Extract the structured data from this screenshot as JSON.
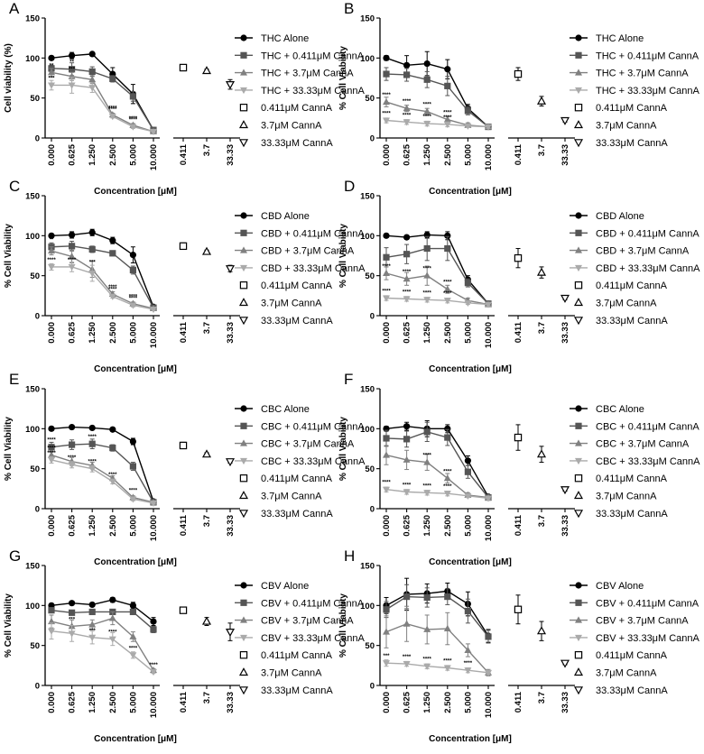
{
  "figure": {
    "xlabel": "Concentration [μM]",
    "x_ticks_combo": [
      "0.000",
      "0.625",
      "1.250",
      "2.500",
      "5.000",
      "10.000"
    ],
    "x_ticks_single": [
      "0.411",
      "3.7",
      "33.33"
    ],
    "y_ticks": [
      "0",
      "50",
      "100",
      "150"
    ],
    "ylim": [
      0,
      150
    ],
    "colors": {
      "alone": "#000000",
      "c0411": "#555555",
      "c37": "#808080",
      "c3333": "#aaaaaa"
    }
  },
  "chart_data": [
    {
      "panel": "A",
      "type": "line",
      "ylabel": "Cell viability (%)",
      "legend": [
        "THC Alone",
        "THC + 0.411μM CannA",
        "THC + 3.7μM CannA",
        "THC + 33.33μM CannA",
        "0.411μM CannA",
        "3.7μM CannA",
        "33.33μM CannA"
      ],
      "series": [
        {
          "values": [
            100,
            103,
            105,
            80,
            55,
            10
          ],
          "err": [
            2,
            4,
            2,
            8,
            12,
            2
          ],
          "sig": [
            "",
            "",
            "",
            "",
            "",
            ""
          ]
        },
        {
          "values": [
            87,
            86,
            83,
            74,
            52,
            10
          ],
          "err": [
            4,
            8,
            6,
            4,
            6,
            2
          ],
          "sig": [
            "*",
            "**",
            "",
            "",
            "",
            ""
          ]
        },
        {
          "values": [
            82,
            77,
            73,
            29,
            16,
            8
          ],
          "err": [
            5,
            5,
            5,
            2,
            2,
            1
          ],
          "sig": [
            "**",
            "***",
            "",
            "****",
            "****",
            ""
          ]
        },
        {
          "values": [
            66,
            66,
            63,
            27,
            14,
            8
          ],
          "err": [
            6,
            10,
            6,
            2,
            2,
            1
          ],
          "sig": [
            "***",
            "",
            "",
            "****",
            "****",
            ""
          ]
        }
      ],
      "singles": [
        {
          "value": 88,
          "err": 2
        },
        {
          "value": 84,
          "err": 2
        },
        {
          "value": 67,
          "err": 6
        }
      ]
    },
    {
      "panel": "B",
      "type": "line",
      "ylabel": "% Cell Viability",
      "legend": [
        "THC Alone",
        "THC + 0.411μM CannA",
        "THC + 3.7μM CannA",
        "THC + 33.33μM CannA",
        "0.411μM CannA",
        "3.7μM CannA",
        "33.33μM CannA"
      ],
      "series": [
        {
          "values": [
            100,
            91,
            93,
            86,
            37,
            14
          ],
          "err": [
            3,
            12,
            15,
            12,
            5,
            2
          ],
          "sig": [
            "",
            "",
            "",
            "",
            "",
            ""
          ]
        },
        {
          "values": [
            80,
            79,
            73,
            65,
            34,
            14
          ],
          "err": [
            8,
            8,
            10,
            12,
            5,
            2
          ],
          "sig": [
            "",
            "",
            "",
            "",
            "",
            ""
          ]
        },
        {
          "values": [
            45,
            37,
            33,
            23,
            16,
            14
          ],
          "err": [
            6,
            4,
            4,
            4,
            3,
            2
          ],
          "sig": [
            "****",
            "****",
            "****",
            "****",
            "",
            ""
          ]
        },
        {
          "values": [
            22,
            20,
            18,
            17,
            15,
            14
          ],
          "err": [
            3,
            3,
            3,
            3,
            2,
            2
          ],
          "sig": [
            "****",
            "****",
            "****",
            "****",
            "",
            ""
          ]
        }
      ],
      "singles": [
        {
          "value": 80,
          "err": 8
        },
        {
          "value": 46,
          "err": 6
        },
        {
          "value": 22,
          "err": 2
        }
      ]
    },
    {
      "panel": "C",
      "type": "line",
      "ylabel": "% Cell Viability",
      "legend": [
        "CBD Alone",
        "CBD + 0.411μM CannA",
        "CBD + 3.7μM CannA",
        "CBD + 33.33μM CannA",
        "0.411μM CannA",
        "3.7μM CannA",
        "33.33μM CannA"
      ],
      "series": [
        {
          "values": [
            100,
            101,
            104,
            94,
            76,
            11
          ],
          "err": [
            2,
            4,
            4,
            4,
            10,
            2
          ],
          "sig": [
            "",
            "",
            "",
            "",
            "",
            ""
          ]
        },
        {
          "values": [
            86,
            87,
            83,
            78,
            57,
            10
          ],
          "err": [
            5,
            6,
            4,
            3,
            5,
            2
          ],
          "sig": [
            "**",
            "",
            "",
            "",
            "",
            ""
          ]
        },
        {
          "values": [
            81,
            74,
            58,
            27,
            15,
            9
          ],
          "err": [
            5,
            8,
            10,
            3,
            2,
            1
          ],
          "sig": [
            "",
            "",
            "***",
            "****",
            "****",
            ""
          ]
        },
        {
          "values": [
            61,
            61,
            53,
            24,
            13,
            8
          ],
          "err": [
            4,
            6,
            10,
            2,
            2,
            1
          ],
          "sig": [
            "****",
            "****",
            "",
            "****",
            "****",
            ""
          ]
        }
      ],
      "singles": [
        {
          "value": 87,
          "err": 4
        },
        {
          "value": 80,
          "err": 2
        },
        {
          "value": 59,
          "err": 4
        }
      ]
    },
    {
      "panel": "D",
      "type": "line",
      "ylabel": "% Cell Viability",
      "legend": [
        "CBD Alone",
        "CBD + 0.411μM CannA",
        "CBD + 3.7μM CannA",
        "CBD + 33.33μM CannA",
        "0.411μM CannA",
        "3.7μM CannA",
        "33.33μM CannA"
      ],
      "series": [
        {
          "values": [
            100,
            98,
            101,
            100,
            45,
            15
          ],
          "err": [
            2,
            2,
            4,
            5,
            5,
            2
          ],
          "sig": [
            "",
            "",
            "",
            "",
            "",
            ""
          ]
        },
        {
          "values": [
            73,
            77,
            84,
            84,
            41,
            15
          ],
          "err": [
            12,
            12,
            15,
            15,
            5,
            2
          ],
          "sig": [
            "",
            "",
            "",
            "",
            "",
            ""
          ]
        },
        {
          "values": [
            53,
            46,
            50,
            33,
            19,
            14
          ],
          "err": [
            8,
            8,
            12,
            5,
            3,
            2
          ],
          "sig": [
            "****",
            "****",
            "****",
            "****",
            "",
            ""
          ]
        },
        {
          "values": [
            22,
            21,
            20,
            19,
            16,
            14
          ],
          "err": [
            3,
            3,
            3,
            3,
            2,
            2
          ],
          "sig": [
            "****",
            "****",
            "****",
            "****",
            "",
            ""
          ]
        }
      ],
      "singles": [
        {
          "value": 72,
          "err": 12
        },
        {
          "value": 54,
          "err": 7
        },
        {
          "value": 22,
          "err": 2
        }
      ]
    },
    {
      "panel": "E",
      "type": "line",
      "ylabel": "% Cell Viability",
      "legend": [
        "CBC Alone",
        "CBC + 0.411μM CannA",
        "CBC + 3.7μM CannA",
        "CBC + 33.33μM CannA",
        "0.411μM CannA",
        "3.7μM CannA",
        "33.33μM CannA"
      ],
      "series": [
        {
          "values": [
            100,
            102,
            101,
            99,
            84,
            9
          ],
          "err": [
            2,
            2,
            2,
            2,
            4,
            2
          ],
          "sig": [
            "",
            "",
            "",
            "",
            "",
            ""
          ]
        },
        {
          "values": [
            77,
            80,
            81,
            76,
            53,
            8
          ],
          "err": [
            6,
            6,
            6,
            4,
            5,
            2
          ],
          "sig": [
            "****",
            "",
            "****",
            "",
            "",
            ""
          ]
        },
        {
          "values": [
            67,
            59,
            54,
            38,
            14,
            8
          ],
          "err": [
            5,
            5,
            4,
            3,
            2,
            1
          ],
          "sig": [
            "****",
            "",
            "",
            "",
            "****",
            ""
          ]
        },
        {
          "values": [
            61,
            55,
            50,
            34,
            12,
            7
          ],
          "err": [
            4,
            4,
            4,
            3,
            2,
            1
          ],
          "sig": [
            "****",
            "****",
            "****",
            "****",
            "",
            ""
          ]
        }
      ],
      "singles": [
        {
          "value": 79,
          "err": 4
        },
        {
          "value": 68,
          "err": 2
        },
        {
          "value": 59,
          "err": 2
        }
      ]
    },
    {
      "panel": "F",
      "type": "line",
      "ylabel": "% Cell Viability",
      "legend": [
        "CBC Alone",
        "CBC + 0.411μM CannA",
        "CBC + 3.7μM CannA",
        "CBC + 33.33μM CannA",
        "0.411μM CannA",
        "3.7μM CannA",
        "33.33μM CannA"
      ],
      "series": [
        {
          "values": [
            100,
            103,
            100,
            100,
            60,
            15
          ],
          "err": [
            3,
            5,
            10,
            5,
            6,
            2
          ],
          "sig": [
            "",
            "",
            "",
            "",
            "",
            ""
          ]
        },
        {
          "values": [
            88,
            87,
            96,
            89,
            46,
            14
          ],
          "err": [
            10,
            10,
            12,
            10,
            8,
            2
          ],
          "sig": [
            "",
            "",
            "",
            "",
            "",
            ""
          ]
        },
        {
          "values": [
            67,
            61,
            58,
            38,
            17,
            14
          ],
          "err": [
            12,
            12,
            10,
            6,
            3,
            2
          ],
          "sig": [
            "",
            "",
            "****",
            "****",
            "",
            ""
          ]
        },
        {
          "values": [
            24,
            21,
            20,
            19,
            16,
            13
          ],
          "err": [
            3,
            3,
            3,
            3,
            2,
            2
          ],
          "sig": [
            "****",
            "****",
            "****",
            "****",
            "",
            ""
          ]
        }
      ],
      "singles": [
        {
          "value": 89,
          "err": 16
        },
        {
          "value": 68,
          "err": 10
        },
        {
          "value": 24,
          "err": 2
        }
      ]
    },
    {
      "panel": "G",
      "type": "line",
      "ylabel": "% Cell Viability",
      "legend": [
        "CBV Alone",
        "CBV + 0.411μM CannA",
        "CBV + 3.7μM CannA",
        "CBV + 33.33μM CannA",
        "0.411μM CannA",
        "3.7μM CannA",
        "33.33μM CannA"
      ],
      "series": [
        {
          "values": [
            100,
            103,
            101,
            107,
            100,
            80
          ],
          "err": [
            2,
            2,
            2,
            3,
            4,
            5
          ],
          "sig": [
            "",
            "",
            "",
            "",
            "",
            ""
          ]
        },
        {
          "values": [
            94,
            91,
            92,
            92,
            92,
            70
          ],
          "err": [
            3,
            3,
            3,
            3,
            3,
            4
          ],
          "sig": [
            "",
            "",
            "",
            "",
            "",
            ""
          ]
        },
        {
          "values": [
            80,
            74,
            76,
            84,
            61,
            19
          ],
          "err": [
            8,
            8,
            6,
            8,
            6,
            2
          ],
          "sig": [
            "",
            "***",
            "",
            "",
            "",
            ""
          ]
        },
        {
          "values": [
            68,
            65,
            60,
            58,
            38,
            17
          ],
          "err": [
            10,
            10,
            8,
            8,
            4,
            2
          ],
          "sig": [
            "",
            "",
            "***",
            "****",
            "****",
            "****"
          ]
        }
      ],
      "singles": [
        {
          "value": 94,
          "err": 2
        },
        {
          "value": 80,
          "err": 5
        },
        {
          "value": 67,
          "err": 11
        }
      ]
    },
    {
      "panel": "H",
      "type": "line",
      "ylabel": "% Cell Viability",
      "legend": [
        "CBV Alone",
        "CBV + 0.411μM CannA",
        "CBV + 3.7μM CannA",
        "CBV + 33.33μM CannA",
        "0.411μM CannA",
        "3.7μM CannA",
        "33.33μM CannA"
      ],
      "series": [
        {
          "values": [
            100,
            114,
            115,
            118,
            102,
            62
          ],
          "err": [
            10,
            20,
            12,
            10,
            15,
            8
          ],
          "sig": [
            "",
            "",
            "",
            "",
            "",
            ""
          ]
        },
        {
          "values": [
            95,
            111,
            110,
            111,
            93,
            61
          ],
          "err": [
            10,
            15,
            12,
            10,
            15,
            8
          ],
          "sig": [
            "",
            "",
            "",
            "",
            "",
            ""
          ]
        },
        {
          "values": [
            67,
            77,
            70,
            71,
            44,
            16
          ],
          "err": [
            20,
            22,
            18,
            20,
            8,
            4
          ],
          "sig": [
            "",
            "",
            "",
            "",
            "",
            ""
          ]
        },
        {
          "values": [
            28,
            27,
            24,
            22,
            19,
            16
          ],
          "err": [
            4,
            3,
            3,
            3,
            3,
            2
          ],
          "sig": [
            "***",
            "****",
            "****",
            "****",
            "****",
            ""
          ]
        }
      ],
      "singles": [
        {
          "value": 95,
          "err": 18
        },
        {
          "value": 68,
          "err": 12
        },
        {
          "value": 28,
          "err": 2
        }
      ]
    }
  ]
}
